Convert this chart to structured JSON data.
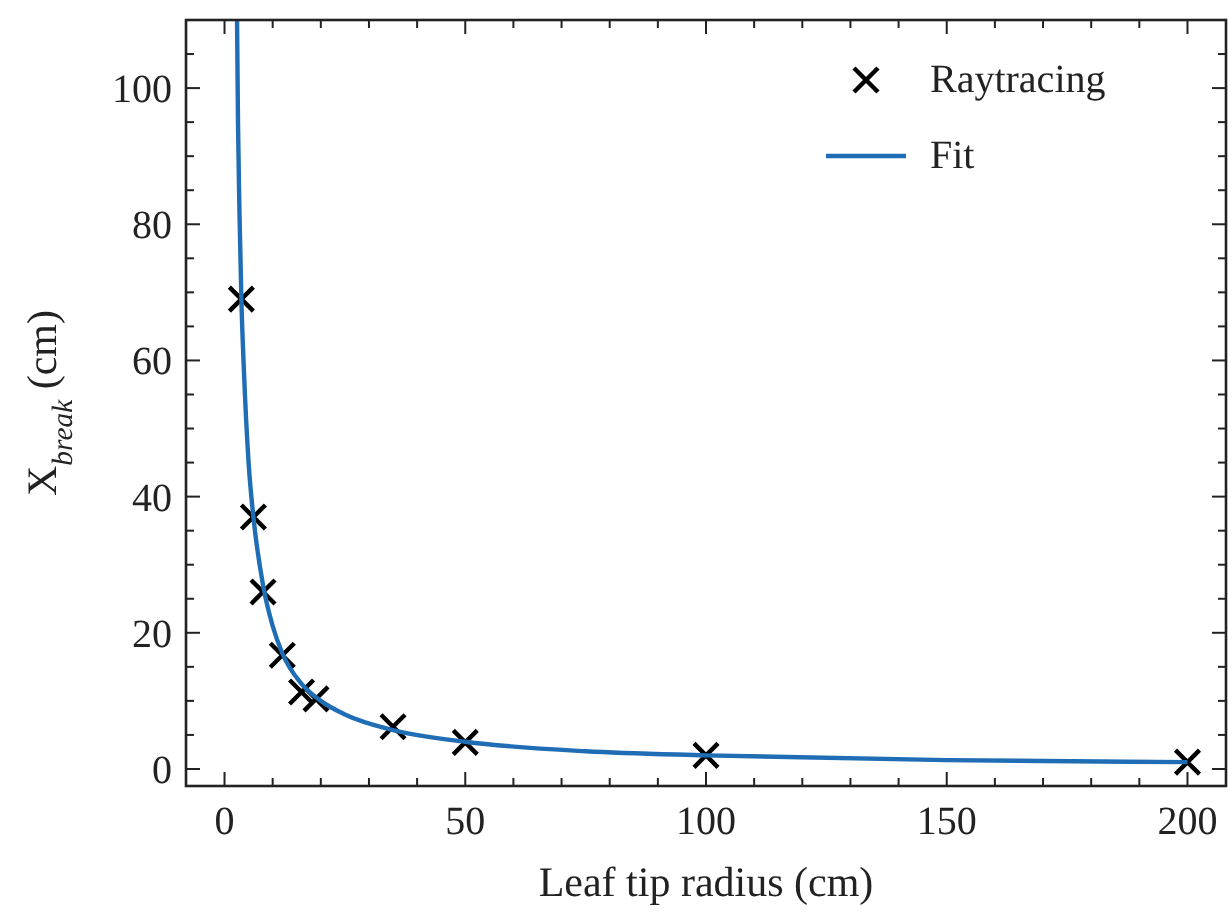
{
  "chart_data": {
    "type": "scatter",
    "xlabel": "Leaf tip radius (cm)",
    "ylabel": "X$_{break}$ (cm)",
    "xlim": [
      -8,
      208
    ],
    "ylim": [
      -2.5,
      110
    ],
    "xticks": [
      0,
      {
        "value": 10,
        "label": null
      },
      {
        "value": 20,
        "label": null
      },
      {
        "value": 30,
        "label": null
      },
      {
        "value": 40,
        "label": null
      },
      50,
      {
        "value": 60,
        "label": null
      },
      {
        "value": 70,
        "label": null
      },
      {
        "value": 80,
        "label": null
      },
      {
        "value": 90,
        "label": null
      },
      100,
      {
        "value": 110,
        "label": null
      },
      {
        "value": 120,
        "label": null
      },
      {
        "value": 130,
        "label": null
      },
      {
        "value": 140,
        "label": null
      },
      150,
      {
        "value": 160,
        "label": null
      },
      {
        "value": 170,
        "label": null
      },
      {
        "value": 180,
        "label": null
      },
      {
        "value": 190,
        "label": null
      },
      200
    ],
    "yticks": [
      0,
      {
        "value": 5,
        "label": null
      },
      {
        "value": 10,
        "label": null
      },
      {
        "value": 15,
        "label": null
      },
      20,
      {
        "value": 25,
        "label": null
      },
      {
        "value": 30,
        "label": null
      },
      {
        "value": 35,
        "label": null
      },
      40,
      {
        "value": 45,
        "label": null
      },
      {
        "value": 50,
        "label": null
      },
      {
        "value": 55,
        "label": null
      },
      60,
      {
        "value": 65,
        "label": null
      },
      {
        "value": 70,
        "label": null
      },
      {
        "value": 75,
        "label": null
      },
      80,
      {
        "value": 85,
        "label": null
      },
      {
        "value": 90,
        "label": null
      },
      {
        "value": 95,
        "label": null
      },
      100,
      {
        "value": 105,
        "label": null
      }
    ],
    "legend": "top right",
    "grid": false,
    "series": [
      {
        "name": "Raytracing",
        "marker": "cross",
        "color": "#000000",
        "x": [
          3.5,
          6,
          8,
          12,
          16,
          19,
          35,
          50,
          100,
          200
        ],
        "values": [
          69,
          37,
          26,
          16.7,
          11.3,
          10.3,
          6.2,
          3.9,
          2,
          1
        ]
      },
      {
        "name": "Fit",
        "type": "line",
        "marker": "none",
        "line_style": "solid",
        "color": "#1f6db5",
        "x": [
          2.6,
          2.8,
          3.1,
          3.5,
          4,
          5,
          6,
          8,
          10,
          12,
          16,
          20,
          25,
          35,
          50,
          75,
          100,
          150,
          200
        ],
        "values": [
          110,
          95,
          82,
          69,
          59,
          45,
          37,
          27,
          21,
          17,
          12.5,
          10,
          8,
          5.7,
          4,
          2.6,
          2,
          1.3,
          1
        ]
      }
    ]
  }
}
